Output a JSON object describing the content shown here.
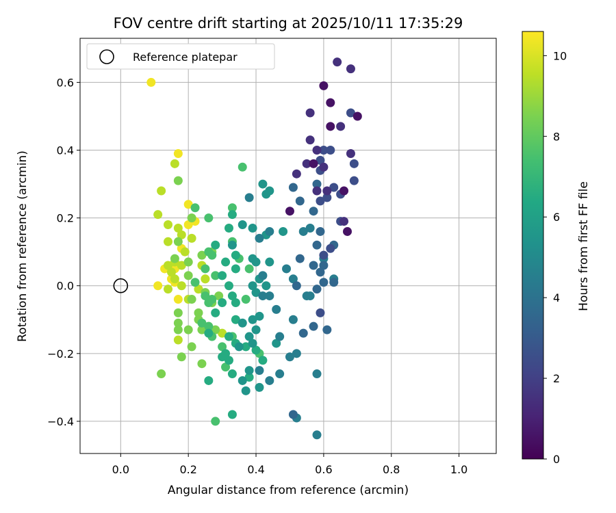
{
  "chart_data": {
    "type": "scatter",
    "title": "FOV centre drift starting at 2025/10/11 17:35:29",
    "xlabel": "Angular distance from reference (arcmin)",
    "ylabel": "Rotation from reference (arcmin)",
    "xlim": [
      -0.12,
      1.11
    ],
    "ylim": [
      -0.495,
      0.73
    ],
    "xticks": [
      0.0,
      0.2,
      0.4,
      0.6,
      0.8,
      1.0
    ],
    "yticks": [
      -0.4,
      -0.2,
      0.0,
      0.2,
      0.4,
      0.6
    ],
    "xtick_labels": [
      "0.0",
      "0.2",
      "0.4",
      "0.6",
      "0.8",
      "1.0"
    ],
    "ytick_labels": [
      "−0.4",
      "−0.2",
      "0.0",
      "0.2",
      "0.4",
      "0.6"
    ],
    "grid": true,
    "legend": {
      "label": "Reference platepar",
      "position": "top-left"
    },
    "reference_point": {
      "x": 0.0,
      "y": 0.0
    },
    "colorbar": {
      "label": "Hours from first FF file",
      "colormap": "viridis",
      "range": [
        0,
        10.6
      ],
      "ticks": [
        0,
        2,
        4,
        6,
        8,
        10
      ],
      "tick_labels": [
        "0",
        "2",
        "4",
        "6",
        "8",
        "10"
      ]
    },
    "series": [
      {
        "name": "0-1h",
        "hours": 0.5,
        "points": [
          [
            0.6,
            0.59
          ],
          [
            0.62,
            0.54
          ],
          [
            0.7,
            0.5
          ],
          [
            0.62,
            0.47
          ],
          [
            0.67,
            0.16
          ],
          [
            0.5,
            0.22
          ],
          [
            0.57,
            0.36
          ],
          [
            0.66,
            0.28
          ]
        ]
      },
      {
        "name": "1-2h",
        "hours": 1.5,
        "points": [
          [
            0.64,
            0.66
          ],
          [
            0.68,
            0.64
          ],
          [
            0.56,
            0.51
          ],
          [
            0.56,
            0.43
          ],
          [
            0.58,
            0.4
          ],
          [
            0.65,
            0.47
          ],
          [
            0.68,
            0.39
          ],
          [
            0.52,
            0.33
          ],
          [
            0.55,
            0.36
          ],
          [
            0.6,
            0.35
          ],
          [
            0.66,
            0.19
          ],
          [
            0.58,
            0.28
          ],
          [
            0.61,
            0.28
          ]
        ]
      },
      {
        "name": "2-3h",
        "hours": 2.5,
        "points": [
          [
            0.68,
            0.51
          ],
          [
            0.6,
            0.4
          ],
          [
            0.62,
            0.4
          ],
          [
            0.69,
            0.36
          ],
          [
            0.59,
            0.37
          ],
          [
            0.59,
            0.34
          ],
          [
            0.63,
            0.29
          ],
          [
            0.65,
            0.27
          ],
          [
            0.61,
            0.26
          ],
          [
            0.59,
            0.25
          ],
          [
            0.69,
            0.31
          ],
          [
            0.62,
            0.11
          ],
          [
            0.6,
            0.09
          ],
          [
            0.65,
            0.19
          ],
          [
            0.59,
            -0.08
          ]
        ]
      },
      {
        "name": "3-4h",
        "hours": 3.5,
        "points": [
          [
            0.58,
            0.3
          ],
          [
            0.57,
            0.22
          ],
          [
            0.59,
            0.16
          ],
          [
            0.58,
            0.12
          ],
          [
            0.63,
            0.12
          ],
          [
            0.6,
            0.06
          ],
          [
            0.57,
            0.06
          ],
          [
            0.59,
            0.04
          ],
          [
            0.6,
            0.01
          ],
          [
            0.53,
            0.25
          ],
          [
            0.51,
            0.29
          ],
          [
            0.53,
            0.08
          ],
          [
            0.52,
            0.0
          ],
          [
            0.58,
            -0.01
          ],
          [
            0.61,
            -0.13
          ],
          [
            0.57,
            -0.12
          ],
          [
            0.54,
            -0.14
          ],
          [
            0.51,
            -0.38
          ],
          [
            0.63,
            0.01
          ]
        ]
      },
      {
        "name": "4-5h",
        "hours": 4.5,
        "points": [
          [
            0.56,
            0.17
          ],
          [
            0.54,
            0.16
          ],
          [
            0.55,
            -0.03
          ],
          [
            0.51,
            0.02
          ],
          [
            0.49,
            0.05
          ],
          [
            0.44,
            0.16
          ],
          [
            0.38,
            0.26
          ],
          [
            0.41,
            0.14
          ],
          [
            0.42,
            0.03
          ],
          [
            0.42,
            -0.03
          ],
          [
            0.44,
            -0.03
          ],
          [
            0.46,
            -0.07
          ],
          [
            0.51,
            -0.1
          ],
          [
            0.52,
            -0.2
          ],
          [
            0.5,
            -0.21
          ],
          [
            0.47,
            -0.15
          ],
          [
            0.44,
            -0.28
          ],
          [
            0.47,
            -0.26
          ],
          [
            0.52,
            -0.39
          ],
          [
            0.58,
            -0.44
          ],
          [
            0.58,
            -0.26
          ],
          [
            0.56,
            -0.03
          ],
          [
            0.6,
            0.08
          ],
          [
            0.63,
            0.02
          ],
          [
            0.41,
            -0.25
          ]
        ]
      },
      {
        "name": "5-6h",
        "hours": 5.5,
        "points": [
          [
            0.42,
            0.3
          ],
          [
            0.43,
            0.27
          ],
          [
            0.44,
            0.28
          ],
          [
            0.39,
            0.17
          ],
          [
            0.39,
            0.08
          ],
          [
            0.4,
            0.07
          ],
          [
            0.41,
            0.02
          ],
          [
            0.39,
            0.0
          ],
          [
            0.4,
            -0.02
          ],
          [
            0.41,
            -0.09
          ],
          [
            0.39,
            -0.1
          ],
          [
            0.4,
            -0.13
          ],
          [
            0.38,
            -0.15
          ],
          [
            0.39,
            -0.17
          ],
          [
            0.36,
            -0.11
          ],
          [
            0.35,
            -0.18
          ],
          [
            0.38,
            -0.25
          ],
          [
            0.37,
            -0.31
          ],
          [
            0.36,
            -0.28
          ],
          [
            0.41,
            -0.3
          ],
          [
            0.46,
            -0.17
          ],
          [
            0.43,
            0.0
          ],
          [
            0.44,
            0.07
          ],
          [
            0.48,
            0.16
          ],
          [
            0.43,
            0.15
          ],
          [
            0.33,
            0.12
          ],
          [
            0.36,
            0.18
          ]
        ]
      },
      {
        "name": "6-7h",
        "hours": 6.5,
        "points": [
          [
            0.33,
            0.21
          ],
          [
            0.32,
            0.17
          ],
          [
            0.34,
            0.09
          ],
          [
            0.31,
            0.07
          ],
          [
            0.34,
            0.05
          ],
          [
            0.32,
            0.0
          ],
          [
            0.33,
            -0.03
          ],
          [
            0.34,
            -0.05
          ],
          [
            0.34,
            -0.1
          ],
          [
            0.32,
            -0.15
          ],
          [
            0.34,
            -0.17
          ],
          [
            0.32,
            -0.22
          ],
          [
            0.33,
            -0.26
          ],
          [
            0.3,
            -0.21
          ],
          [
            0.31,
            -0.2
          ],
          [
            0.37,
            -0.18
          ],
          [
            0.38,
            -0.27
          ],
          [
            0.4,
            -0.19
          ],
          [
            0.42,
            -0.22
          ],
          [
            0.33,
            -0.38
          ],
          [
            0.28,
            0.12
          ],
          [
            0.3,
            0.03
          ],
          [
            0.3,
            -0.05
          ],
          [
            0.28,
            -0.08
          ],
          [
            0.26,
            -0.28
          ],
          [
            0.26,
            -0.14
          ]
        ]
      },
      {
        "name": "7-8h",
        "hours": 7.5,
        "points": [
          [
            0.36,
            0.35
          ],
          [
            0.33,
            0.23
          ],
          [
            0.28,
            0.03
          ],
          [
            0.27,
            -0.04
          ],
          [
            0.26,
            -0.12
          ],
          [
            0.27,
            -0.15
          ],
          [
            0.3,
            -0.18
          ],
          [
            0.31,
            -0.24
          ],
          [
            0.28,
            -0.4
          ],
          [
            0.26,
            0.1
          ],
          [
            0.27,
            0.09
          ],
          [
            0.25,
            0.05
          ],
          [
            0.25,
            -0.03
          ],
          [
            0.24,
            -0.11
          ],
          [
            0.26,
            -0.05
          ],
          [
            0.22,
            0.23
          ],
          [
            0.26,
            0.2
          ],
          [
            0.22,
            0.01
          ],
          [
            0.33,
            -0.15
          ],
          [
            0.35,
            0.08
          ],
          [
            0.38,
            0.05
          ],
          [
            0.41,
            -0.2
          ],
          [
            0.37,
            -0.04
          ],
          [
            0.33,
            0.13
          ]
        ]
      },
      {
        "name": "8-9h",
        "hours": 8.5,
        "points": [
          [
            0.17,
            0.31
          ],
          [
            0.21,
            0.2
          ],
          [
            0.17,
            0.13
          ],
          [
            0.16,
            0.08
          ],
          [
            0.2,
            0.07
          ],
          [
            0.2,
            0.03
          ],
          [
            0.21,
            -0.04
          ],
          [
            0.17,
            -0.08
          ],
          [
            0.17,
            -0.11
          ],
          [
            0.17,
            -0.13
          ],
          [
            0.23,
            -0.08
          ],
          [
            0.23,
            -0.1
          ],
          [
            0.24,
            -0.13
          ],
          [
            0.2,
            -0.13
          ],
          [
            0.21,
            -0.18
          ],
          [
            0.24,
            -0.23
          ],
          [
            0.18,
            -0.21
          ],
          [
            0.24,
            0.09
          ],
          [
            0.28,
            -0.13
          ],
          [
            0.29,
            -0.03
          ],
          [
            0.27,
            0.1
          ],
          [
            0.27,
            -0.05
          ],
          [
            0.12,
            -0.26
          ],
          [
            0.25,
            -0.02
          ]
        ]
      },
      {
        "name": "9-10h",
        "hours": 9.5,
        "points": [
          [
            0.16,
            0.36
          ],
          [
            0.12,
            0.28
          ],
          [
            0.11,
            0.21
          ],
          [
            0.14,
            0.18
          ],
          [
            0.17,
            0.17
          ],
          [
            0.18,
            0.15
          ],
          [
            0.21,
            0.14
          ],
          [
            0.14,
            0.13
          ],
          [
            0.19,
            0.1
          ],
          [
            0.16,
            0.07
          ],
          [
            0.14,
            0.06
          ],
          [
            0.15,
            0.04
          ],
          [
            0.18,
            0.06
          ],
          [
            0.2,
            0.07
          ],
          [
            0.14,
            -0.01
          ],
          [
            0.18,
            0.0
          ],
          [
            0.2,
            -0.04
          ],
          [
            0.25,
            0.02
          ],
          [
            0.24,
            0.06
          ],
          [
            0.26,
            -0.12
          ],
          [
            0.3,
            -0.14
          ],
          [
            0.23,
            -0.01
          ],
          [
            0.17,
            -0.16
          ],
          [
            0.16,
            0.02
          ]
        ]
      },
      {
        "name": "10-10.6h",
        "hours": 10.4,
        "points": [
          [
            0.09,
            0.6
          ],
          [
            0.17,
            0.39
          ],
          [
            0.2,
            0.24
          ],
          [
            0.22,
            0.19
          ],
          [
            0.16,
            0.05
          ],
          [
            0.15,
            0.02
          ],
          [
            0.16,
            0.01
          ],
          [
            0.17,
            -0.04
          ],
          [
            0.11,
            0.0
          ],
          [
            0.13,
            0.05
          ],
          [
            0.18,
            0.11
          ],
          [
            0.23,
            -0.01
          ],
          [
            0.25,
            0.02
          ],
          [
            0.2,
            0.18
          ]
        ]
      }
    ]
  }
}
